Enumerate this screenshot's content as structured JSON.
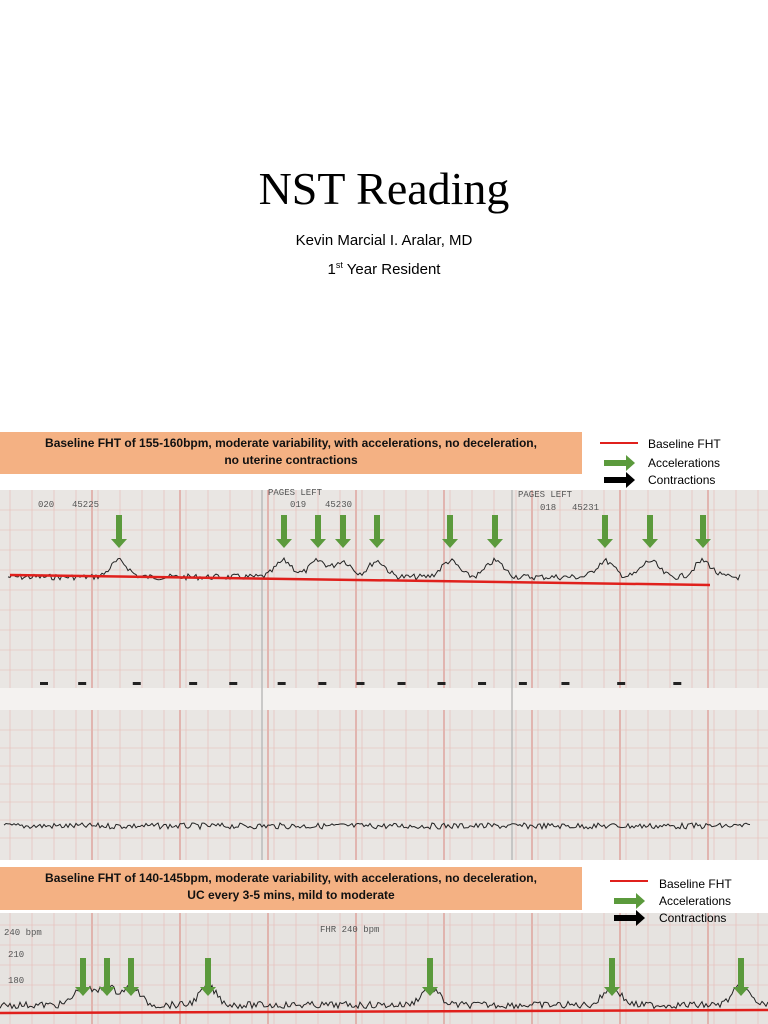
{
  "title": "NST Reading",
  "author": "Kevin Marcial I. Aralar, MD",
  "position": {
    "number": "1",
    "suffix": "st",
    "rest": " Year Resident"
  },
  "panels": [
    {
      "caption": [
        "Baseline FHT of 155-160bpm, moderate variability, with accelerations, no deceleration,",
        "no uterine contractions"
      ],
      "legend": [
        "Baseline FHT",
        "Accelerations",
        "Contractions"
      ],
      "strip_labels": [
        "020",
        "45225",
        "019",
        "45230",
        "018",
        "45231",
        "PAGES LEFT",
        "PAGES LEFT"
      ]
    },
    {
      "caption": [
        "Baseline FHT of 140-145bpm, moderate variability, with accelerations, no deceleration,",
        "UC every 3-5 mins, mild to moderate"
      ],
      "legend": [
        "Baseline FHT",
        "Accelerations",
        "Contractions"
      ],
      "strip_labels": [
        "240 bpm",
        "FHR 240 bpm",
        "210",
        "180"
      ]
    }
  ]
}
